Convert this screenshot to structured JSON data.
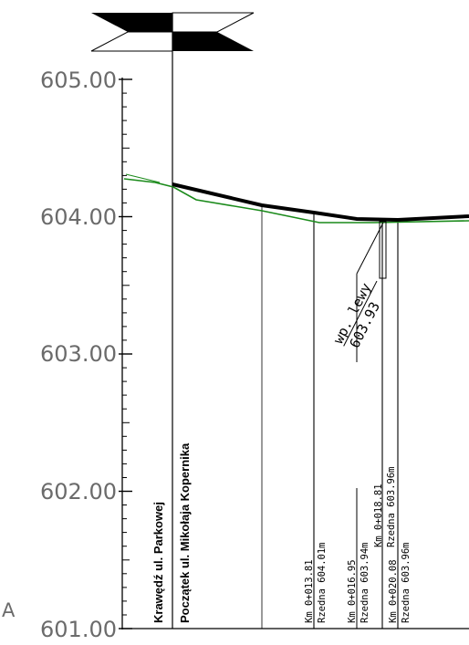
{
  "drawing": {
    "type": "longitudinal-profile",
    "corner_letter": "A",
    "elevation_axis": {
      "labels": [
        "605.00",
        "604.00",
        "603.00",
        "602.00",
        "601.00"
      ],
      "values": [
        605.0,
        604.0,
        603.0,
        602.0,
        601.0
      ],
      "range": [
        601.0,
        605.0
      ]
    },
    "street_labels": [
      "Krawędź ul. Parkowej",
      "Początek ul. Mikołaja Kopernika"
    ],
    "stations": [
      {
        "km": "Km 0+013.81",
        "elevation": "Rzedna 604.01m"
      },
      {
        "km": "Km 0+016.95",
        "elevation": "Rzedna 603.94m"
      },
      {
        "km": "Km 0+018.81",
        "elevation": "Rzedna 603.96m"
      },
      {
        "km": "Km 0+020.08",
        "elevation": "Rzedna 603.96m"
      }
    ],
    "well": {
      "label": "wp. lewy",
      "elevation": "603.93"
    },
    "colors": {
      "design_line": "#000000",
      "terrain_line": "#1a8a1a",
      "axis_labels": "#6b6b6b"
    }
  }
}
